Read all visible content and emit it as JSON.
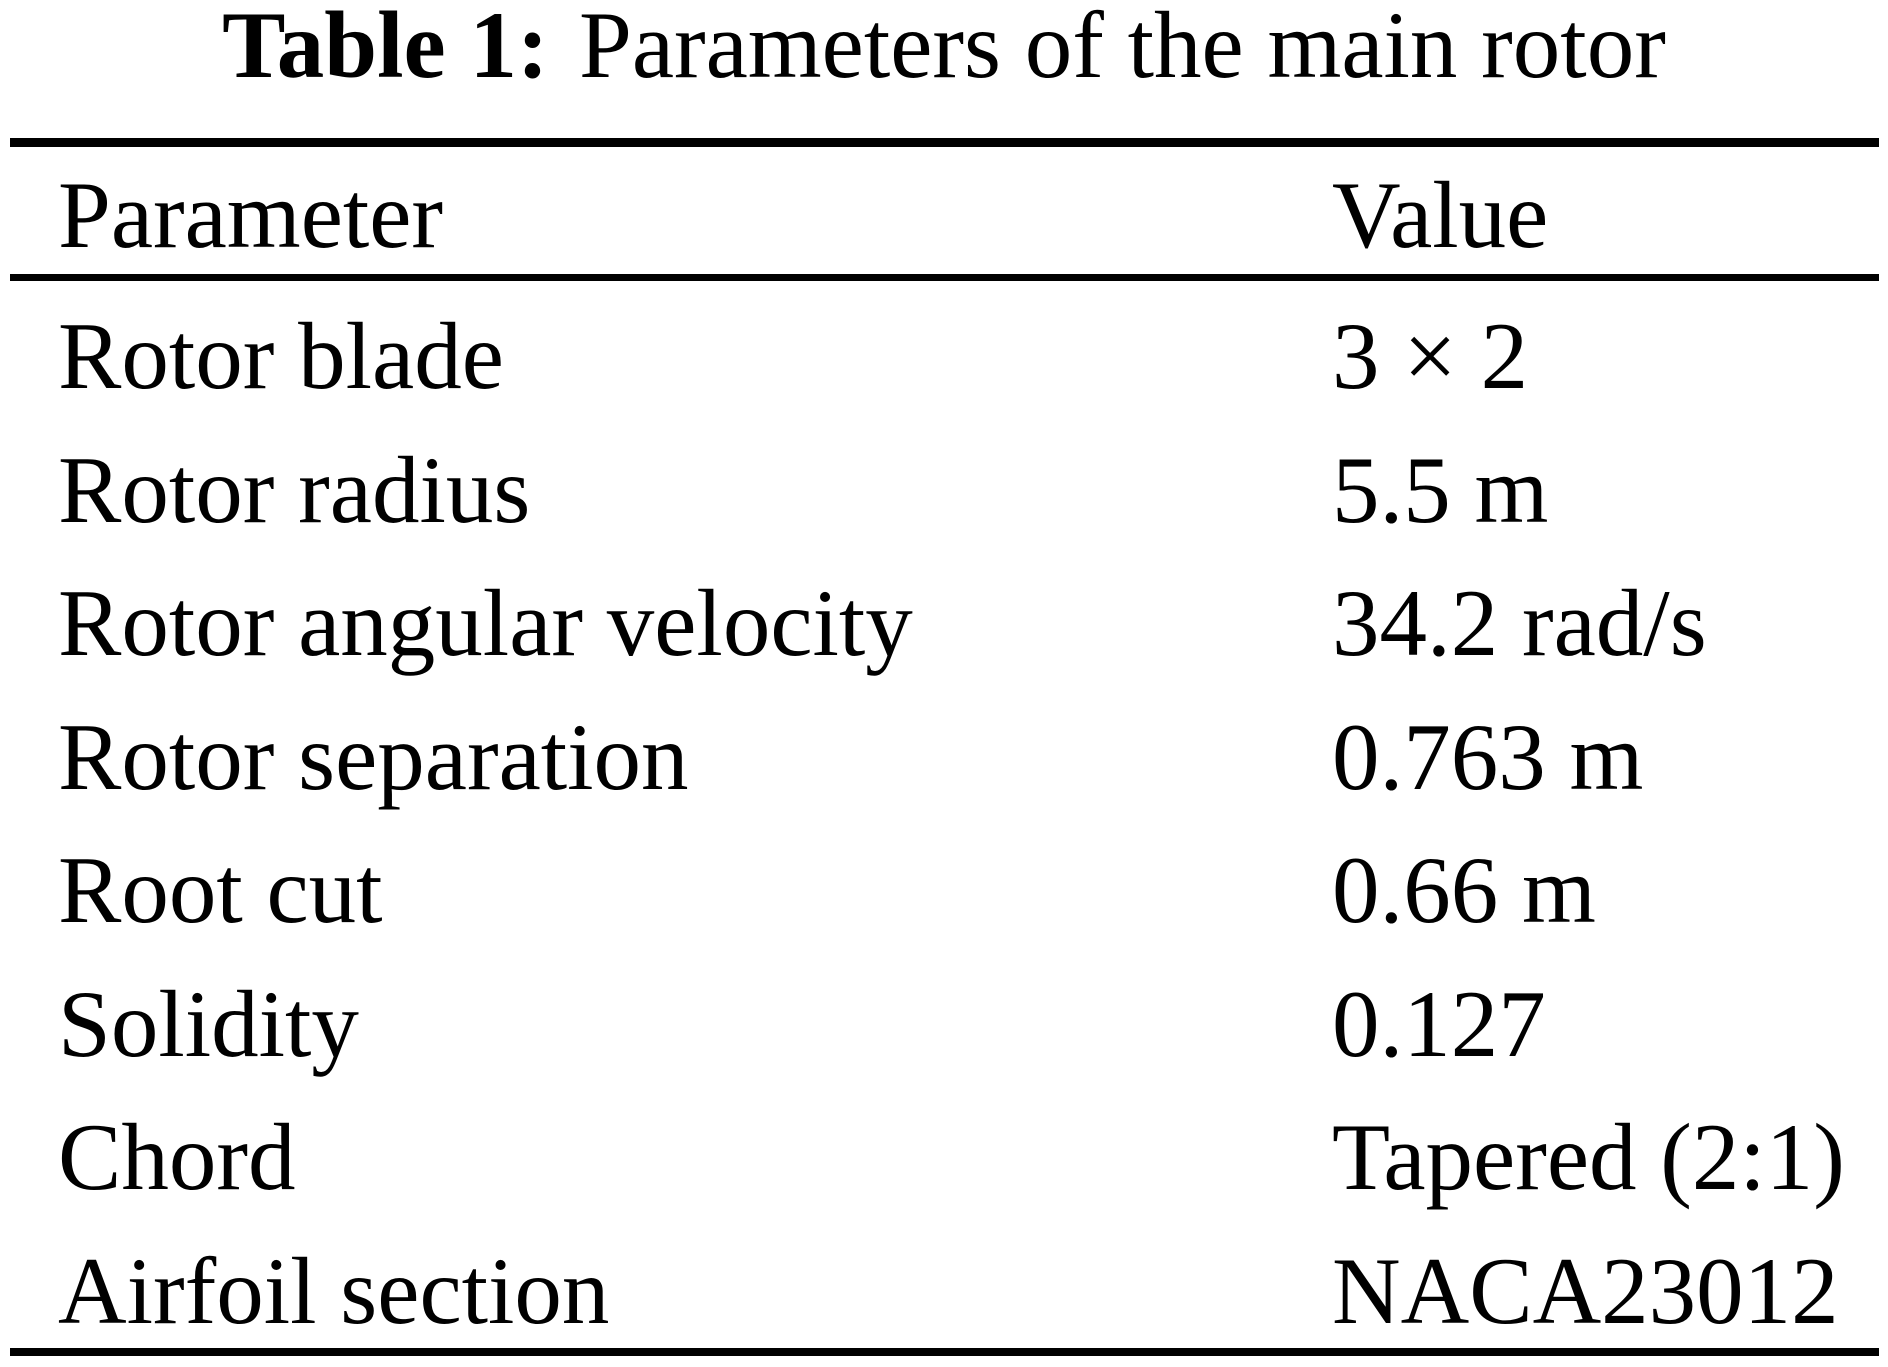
{
  "page": {
    "background_color": "#ffffff",
    "text_color": "#000000",
    "rule_color": "#000000"
  },
  "caption": {
    "label": "Table 1:",
    "text": "Parameters of the main rotor"
  },
  "table": {
    "columns": [
      {
        "header": "Parameter"
      },
      {
        "header": "Value"
      }
    ],
    "rows": [
      {
        "param": "Rotor blade",
        "value": "3 × 2"
      },
      {
        "param": "Rotor radius",
        "value": "5.5 m"
      },
      {
        "param": "Rotor angular velocity",
        "value": "34.2 rad/s"
      },
      {
        "param": "Rotor separation",
        "value": "0.763 m"
      },
      {
        "param": "Root cut",
        "value": "0.66 m"
      },
      {
        "param": "Solidity",
        "value": "0.127"
      },
      {
        "param": "Chord",
        "value": "Tapered (2:1)"
      },
      {
        "param": "Airfoil section",
        "value": "NACA23012"
      }
    ]
  },
  "chart_data": {
    "type": "table",
    "title": "Table 1: Parameters of the main rotor",
    "columns": [
      "Parameter",
      "Value"
    ],
    "rows": [
      [
        "Rotor blade",
        "3 × 2"
      ],
      [
        "Rotor radius",
        "5.5 m"
      ],
      [
        "Rotor angular velocity",
        "34.2 rad/s"
      ],
      [
        "Rotor separation",
        "0.763 m"
      ],
      [
        "Root cut",
        "0.66 m"
      ],
      [
        "Solidity",
        "0.127"
      ],
      [
        "Chord",
        "Tapered (2:1)"
      ],
      [
        "Airfoil section",
        "NACA23012"
      ]
    ]
  }
}
